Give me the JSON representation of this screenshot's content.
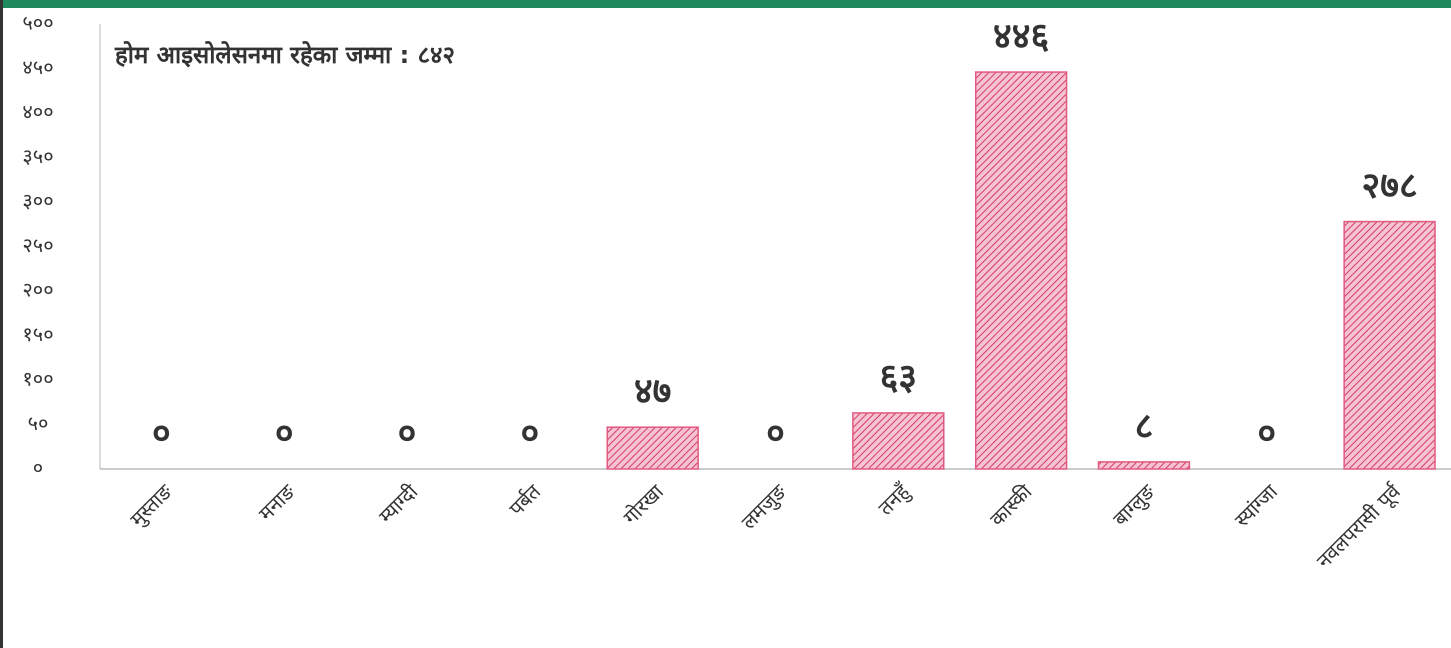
{
  "chart_data": {
    "type": "bar",
    "title": "होम आइसोलेसनमा रहेका जम्मा : ८४२",
    "categories": [
      "मुस्ताङ",
      "मनाङ",
      "म्याग्दी",
      "पर्बत",
      "गोरखा",
      "लमजुङ",
      "तनहुँ",
      "कास्की",
      "बाग्लुङ",
      "स्यांग्जा",
      "नवलपरासी पूर्व"
    ],
    "values": [
      0,
      0,
      0,
      0,
      47,
      0,
      63,
      446,
      8,
      0,
      278
    ],
    "value_labels": [
      "०",
      "०",
      "०",
      "०",
      "४७",
      "०",
      "६३",
      "४४६",
      "८",
      "०",
      "२७८"
    ],
    "color": "#e05a80",
    "ylim": [
      0,
      500
    ],
    "yticks": [
      {
        "value": 0,
        "label": "०"
      },
      {
        "value": 50,
        "label": "५०"
      },
      {
        "value": 100,
        "label": "१००"
      },
      {
        "value": 150,
        "label": "१५०"
      },
      {
        "value": 200,
        "label": "२००"
      },
      {
        "value": 250,
        "label": "२५०"
      },
      {
        "value": 300,
        "label": "३००"
      },
      {
        "value": 350,
        "label": "३५०"
      },
      {
        "value": 400,
        "label": "४००"
      },
      {
        "value": 450,
        "label": "४५०"
      },
      {
        "value": 500,
        "label": "५००"
      }
    ],
    "grid": false
  }
}
